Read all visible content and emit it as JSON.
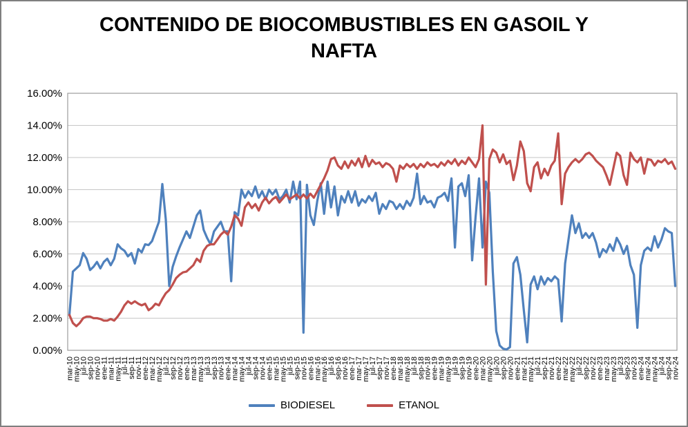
{
  "window": {
    "background": "#FFFFFF",
    "border_color": "#7F7F7F"
  },
  "chart_data": {
    "type": "line",
    "title": "CONTENIDO DE BIOCOMBUSTIBLES EN GASOIL Y NAFTA",
    "xlabel": "",
    "ylabel": "",
    "ylim": [
      0,
      16
    ],
    "y_tick_labels": [
      "0.00%",
      "2.00%",
      "4.00%",
      "6.00%",
      "8.00%",
      "10.00%",
      "12.00%",
      "14.00%",
      "16.00%"
    ],
    "grid": "horizontal",
    "legend_position": "bottom",
    "x_tick_every": 2,
    "x": [
      "mar-10",
      "abr-10",
      "may-10",
      "jun-10",
      "jul-10",
      "ago-10",
      "sep-10",
      "oct-10",
      "nov-10",
      "dic-10",
      "ene-11",
      "feb-11",
      "mar-11",
      "abr-11",
      "may-11",
      "jun-11",
      "jul-11",
      "ago-11",
      "sep-11",
      "oct-11",
      "nov-11",
      "dic-11",
      "ene-12",
      "feb-12",
      "mar-12",
      "abr-12",
      "may-12",
      "jun-12",
      "jul-12",
      "ago-12",
      "sep-12",
      "oct-12",
      "nov-12",
      "dic-12",
      "ene-13",
      "feb-13",
      "mar-13",
      "abr-13",
      "may-13",
      "jun-13",
      "jul-13",
      "ago-13",
      "sep-13",
      "oct-13",
      "nov-13",
      "dic-13",
      "ene-14",
      "feb-14",
      "mar-14",
      "abr-14",
      "may-14",
      "jun-14",
      "jul-14",
      "ago-14",
      "sep-14",
      "oct-14",
      "nov-14",
      "dic-14",
      "ene-15",
      "feb-15",
      "mar-15",
      "abr-15",
      "may-15",
      "jun-15",
      "jul-15",
      "ago-15",
      "sep-15",
      "oct-15",
      "nov-15",
      "dic-15",
      "ene-16",
      "feb-16",
      "mar-16",
      "abr-16",
      "may-16",
      "jun-16",
      "jul-16",
      "ago-16",
      "sep-16",
      "oct-16",
      "nov-16",
      "dic-16",
      "ene-17",
      "feb-17",
      "mar-17",
      "abr-17",
      "may-17",
      "jun-17",
      "jul-17",
      "ago-17",
      "sep-17",
      "oct-17",
      "nov-17",
      "dic-17",
      "ene-18",
      "feb-18",
      "mar-18",
      "abr-18",
      "may-18",
      "jun-18",
      "jul-18",
      "ago-18",
      "sep-18",
      "oct-18",
      "nov-18",
      "dic-18",
      "ene-19",
      "feb-19",
      "mar-19",
      "abr-19",
      "may-19",
      "jun-19",
      "jul-19",
      "ago-19",
      "sep-19",
      "oct-19",
      "nov-19",
      "dic-19",
      "ene-20",
      "feb-20",
      "mar-20",
      "abr-20",
      "may-20",
      "jun-20",
      "jul-20",
      "ago-20",
      "sep-20",
      "oct-20",
      "nov-20",
      "dic-20",
      "ene-21",
      "feb-21",
      "mar-21",
      "abr-21",
      "may-21",
      "jun-21",
      "jul-21",
      "ago-21",
      "sep-21",
      "oct-21",
      "nov-21",
      "dic-21",
      "ene-22",
      "feb-22",
      "mar-22",
      "abr-22",
      "may-22",
      "jun-22",
      "jul-22",
      "ago-22",
      "sep-22",
      "oct-22",
      "nov-22",
      "dic-22",
      "ene-23",
      "feb-23",
      "mar-23",
      "abr-23",
      "may-23",
      "jun-23",
      "jul-23",
      "ago-23",
      "sep-23",
      "oct-23",
      "nov-23",
      "dic-23",
      "ene-24",
      "feb-24",
      "mar-24",
      "abr-24",
      "may-24",
      "jun-24",
      "jul-24",
      "ago-24",
      "sep-24",
      "oct-24",
      "nov-24"
    ],
    "series": [
      {
        "name": "BIODIESEL",
        "color": "#4F81BD",
        "values": [
          2.2,
          4.9,
          5.1,
          5.3,
          6.05,
          5.7,
          5.0,
          5.2,
          5.5,
          5.1,
          5.5,
          5.7,
          5.3,
          5.7,
          6.6,
          6.35,
          6.2,
          5.85,
          6.05,
          5.4,
          6.3,
          6.1,
          6.6,
          6.55,
          6.8,
          7.4,
          8.0,
          10.35,
          8.15,
          4.0,
          5.2,
          5.85,
          6.4,
          6.9,
          7.4,
          7.0,
          7.7,
          8.4,
          8.7,
          7.5,
          7.0,
          6.6,
          7.4,
          7.7,
          8.0,
          7.4,
          7.4,
          4.3,
          8.6,
          8.4,
          10.0,
          9.5,
          9.9,
          9.6,
          10.2,
          9.5,
          9.9,
          9.4,
          10.0,
          9.7,
          10.0,
          9.4,
          9.6,
          10.0,
          9.2,
          10.5,
          9.4,
          10.5,
          1.1,
          10.3,
          8.4,
          7.8,
          9.3,
          10.4,
          8.5,
          10.5,
          8.9,
          10.2,
          8.4,
          9.6,
          9.2,
          9.9,
          9.2,
          9.9,
          9.0,
          9.4,
          9.2,
          9.6,
          9.3,
          9.8,
          8.5,
          9.1,
          8.8,
          9.3,
          9.2,
          8.8,
          9.1,
          8.8,
          9.3,
          9.0,
          9.5,
          11.0,
          9.1,
          9.6,
          9.2,
          9.3,
          8.9,
          9.5,
          9.6,
          9.8,
          9.3,
          10.7,
          6.4,
          10.2,
          10.4,
          9.6,
          10.9,
          5.6,
          8.3,
          10.7,
          6.4,
          10.5,
          9.8,
          4.9,
          1.2,
          0.3,
          0.1,
          0.05,
          0.2,
          5.4,
          5.8,
          4.7,
          2.5,
          0.5,
          4.1,
          4.6,
          3.8,
          4.6,
          4.1,
          4.5,
          4.3,
          4.6,
          4.4,
          1.8,
          5.4,
          6.9,
          8.4,
          7.3,
          7.9,
          7.0,
          7.3,
          7.0,
          7.3,
          6.7,
          5.8,
          6.3,
          6.1,
          6.6,
          6.2,
          7.0,
          6.6,
          6.0,
          6.5,
          5.3,
          4.7,
          1.4,
          5.3,
          6.2,
          6.4,
          6.2,
          7.1,
          6.4,
          6.9,
          7.6,
          7.4,
          7.3,
          4.0
        ]
      },
      {
        "name": "ETANOL",
        "color": "#C0504D",
        "values": [
          2.2,
          1.7,
          1.5,
          1.7,
          2.0,
          2.1,
          2.1,
          2.0,
          2.0,
          1.95,
          1.85,
          1.85,
          1.95,
          1.85,
          2.1,
          2.4,
          2.8,
          3.05,
          2.9,
          3.05,
          2.9,
          2.8,
          2.9,
          2.5,
          2.65,
          2.9,
          2.8,
          3.2,
          3.55,
          3.75,
          4.1,
          4.5,
          4.7,
          4.85,
          4.9,
          5.1,
          5.3,
          5.7,
          5.5,
          6.2,
          6.5,
          6.6,
          6.6,
          6.9,
          7.2,
          7.4,
          7.2,
          7.7,
          8.4,
          8.2,
          7.75,
          8.9,
          9.2,
          8.85,
          9.1,
          8.7,
          9.2,
          9.5,
          9.15,
          9.4,
          9.55,
          9.2,
          9.45,
          9.7,
          9.4,
          9.55,
          9.7,
          9.45,
          9.7,
          9.45,
          9.75,
          9.5,
          9.9,
          10.3,
          10.7,
          11.2,
          11.9,
          12.0,
          11.5,
          11.3,
          11.75,
          11.35,
          11.8,
          11.5,
          11.95,
          11.4,
          12.1,
          11.45,
          11.85,
          11.6,
          11.7,
          11.4,
          11.65,
          11.55,
          11.3,
          10.5,
          11.5,
          11.3,
          11.6,
          11.4,
          11.6,
          11.3,
          11.6,
          11.4,
          11.7,
          11.5,
          11.6,
          11.4,
          11.7,
          11.5,
          11.8,
          11.6,
          11.9,
          11.5,
          11.8,
          11.6,
          12.0,
          11.7,
          11.4,
          11.9,
          14.0,
          4.1,
          11.9,
          12.5,
          12.3,
          11.7,
          12.2,
          11.6,
          11.8,
          10.6,
          11.5,
          13.0,
          12.4,
          10.4,
          9.9,
          11.4,
          11.7,
          10.7,
          11.3,
          10.9,
          11.5,
          11.8,
          13.5,
          9.1,
          11.0,
          11.4,
          11.7,
          11.9,
          11.7,
          11.9,
          12.2,
          12.3,
          12.1,
          11.8,
          11.6,
          11.4,
          10.9,
          10.3,
          11.3,
          12.3,
          12.1,
          10.9,
          10.3,
          12.3,
          11.9,
          11.7,
          12.0,
          11.0,
          11.9,
          11.85,
          11.5,
          11.8,
          11.7,
          11.9,
          11.6,
          11.75,
          11.3
        ]
      }
    ]
  },
  "style": {
    "gridline_color": "#C6C6C6",
    "axis_color": "#9B9B9B",
    "text_color": "#000000",
    "series_stroke_width": 3.25
  }
}
